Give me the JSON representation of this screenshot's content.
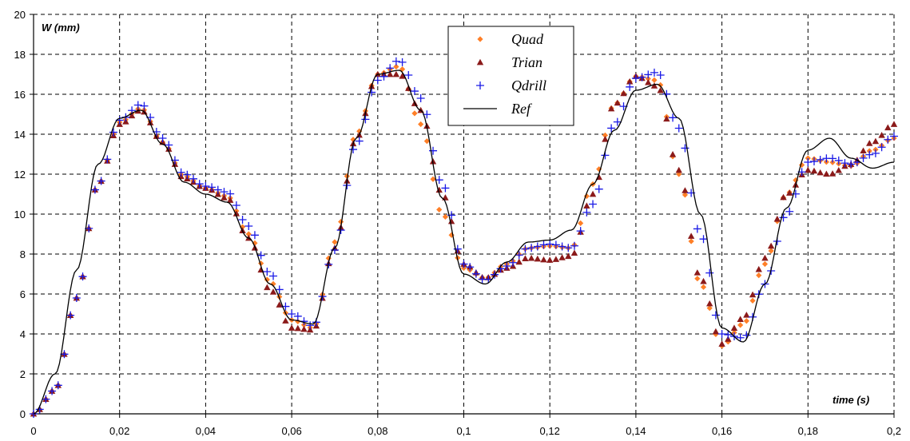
{
  "chart_data": {
    "type": "scatter",
    "xlabel": "time (s)",
    "ylabel": "W (mm)",
    "xlim": [
      0,
      0.2
    ],
    "ylim": [
      0,
      20
    ],
    "xticks": [
      0,
      0.02,
      0.04,
      0.06,
      0.08,
      0.1,
      0.12,
      0.14,
      0.16,
      0.18,
      0.2
    ],
    "xtick_labels": [
      "0",
      "0,02",
      "0,04",
      "0,06",
      "0,08",
      "0,1",
      "0,12",
      "0,14",
      "0,16",
      "0,18",
      "0,2"
    ],
    "yticks": [
      0,
      2,
      4,
      6,
      8,
      10,
      12,
      14,
      16,
      18,
      20
    ],
    "ytick_labels": [
      "0",
      "2",
      "4",
      "6",
      "8",
      "10",
      "12",
      "14",
      "16",
      "18",
      "20"
    ],
    "grid": true,
    "legend_position": "top-center",
    "series": [
      {
        "name": "Quad",
        "marker": "diamond",
        "color": "#FF7F27",
        "x": [
          0,
          0.005,
          0.01,
          0.015,
          0.02,
          0.025,
          0.03,
          0.035,
          0.04,
          0.045,
          0.05,
          0.055,
          0.06,
          0.065,
          0.07,
          0.075,
          0.08,
          0.085,
          0.09,
          0.095,
          0.1,
          0.105,
          0.11,
          0.115,
          0.12,
          0.125,
          0.13,
          0.135,
          0.14,
          0.145,
          0.15,
          0.155,
          0.16,
          0.165,
          0.17,
          0.175,
          0.18,
          0.185,
          0.19,
          0.195,
          0.2
        ],
        "values": [
          0,
          1.2,
          5.8,
          11.5,
          14.6,
          15.3,
          13.6,
          11.9,
          11.3,
          10.9,
          9.0,
          6.6,
          4.7,
          4.3,
          8.6,
          14.0,
          17.0,
          17.4,
          14.5,
          10.0,
          7.3,
          6.8,
          7.5,
          8.3,
          8.4,
          8.3,
          11.5,
          15.5,
          16.9,
          16.7,
          12.0,
          6.5,
          3.4,
          4.5,
          7.5,
          11.0,
          12.8,
          12.6,
          12.4,
          13.2,
          13.8
        ]
      },
      {
        "name": "Trian",
        "marker": "triangle",
        "color": "#8B1A1A",
        "x": [
          0,
          0.005,
          0.01,
          0.015,
          0.02,
          0.025,
          0.03,
          0.035,
          0.04,
          0.045,
          0.05,
          0.055,
          0.06,
          0.065,
          0.07,
          0.075,
          0.08,
          0.085,
          0.09,
          0.095,
          0.1,
          0.105,
          0.11,
          0.115,
          0.12,
          0.125,
          0.13,
          0.135,
          0.14,
          0.145,
          0.15,
          0.155,
          0.16,
          0.165,
          0.17,
          0.175,
          0.18,
          0.185,
          0.19,
          0.195,
          0.2
        ],
        "values": [
          0,
          1.2,
          5.8,
          11.5,
          14.5,
          15.2,
          13.6,
          11.8,
          11.3,
          10.8,
          8.8,
          6.2,
          4.3,
          4.2,
          8.3,
          13.8,
          17.0,
          17.0,
          15.2,
          11.0,
          7.5,
          6.8,
          7.3,
          7.8,
          7.7,
          7.9,
          11.0,
          15.5,
          16.9,
          16.4,
          12.2,
          6.8,
          3.5,
          4.8,
          7.8,
          11.0,
          12.2,
          12.0,
          12.5,
          13.6,
          14.5
        ]
      },
      {
        "name": "Qdrill",
        "marker": "plus",
        "color": "#1A1AE6",
        "x": [
          0,
          0.005,
          0.01,
          0.015,
          0.02,
          0.025,
          0.03,
          0.035,
          0.04,
          0.045,
          0.05,
          0.055,
          0.06,
          0.065,
          0.07,
          0.075,
          0.08,
          0.085,
          0.09,
          0.095,
          0.1,
          0.105,
          0.11,
          0.115,
          0.12,
          0.125,
          0.13,
          0.135,
          0.14,
          0.145,
          0.15,
          0.155,
          0.16,
          0.165,
          0.17,
          0.175,
          0.18,
          0.185,
          0.19,
          0.195,
          0.2
        ],
        "values": [
          0,
          1.2,
          5.8,
          11.5,
          14.7,
          15.5,
          13.8,
          12.0,
          11.4,
          11.1,
          9.4,
          7.0,
          5.0,
          4.4,
          8.2,
          13.5,
          16.7,
          17.7,
          15.8,
          11.5,
          7.5,
          6.7,
          7.4,
          8.3,
          8.5,
          8.3,
          10.5,
          14.5,
          16.8,
          17.1,
          14.3,
          9.0,
          4.0,
          3.8,
          6.5,
          10.0,
          12.6,
          12.8,
          12.5,
          13.0,
          13.9
        ]
      },
      {
        "name": "Ref",
        "marker": "line",
        "color": "#000000",
        "x": [
          0,
          0.005,
          0.01,
          0.015,
          0.02,
          0.025,
          0.03,
          0.035,
          0.04,
          0.045,
          0.05,
          0.055,
          0.06,
          0.065,
          0.07,
          0.075,
          0.08,
          0.085,
          0.09,
          0.095,
          0.1,
          0.105,
          0.11,
          0.115,
          0.12,
          0.125,
          0.13,
          0.135,
          0.14,
          0.145,
          0.15,
          0.155,
          0.16,
          0.165,
          0.17,
          0.175,
          0.18,
          0.185,
          0.19,
          0.195,
          0.2
        ],
        "values": [
          0,
          2.0,
          7.2,
          12.5,
          14.8,
          15.2,
          13.5,
          11.6,
          11.0,
          10.6,
          8.8,
          6.5,
          4.7,
          4.5,
          8.3,
          13.8,
          17.0,
          17.2,
          15.2,
          10.8,
          7.0,
          6.5,
          7.6,
          8.6,
          8.7,
          9.2,
          11.5,
          14.2,
          16.2,
          16.5,
          14.8,
          10.0,
          4.3,
          3.6,
          6.5,
          10.3,
          13.2,
          13.8,
          12.8,
          12.3,
          12.6
        ]
      }
    ]
  }
}
